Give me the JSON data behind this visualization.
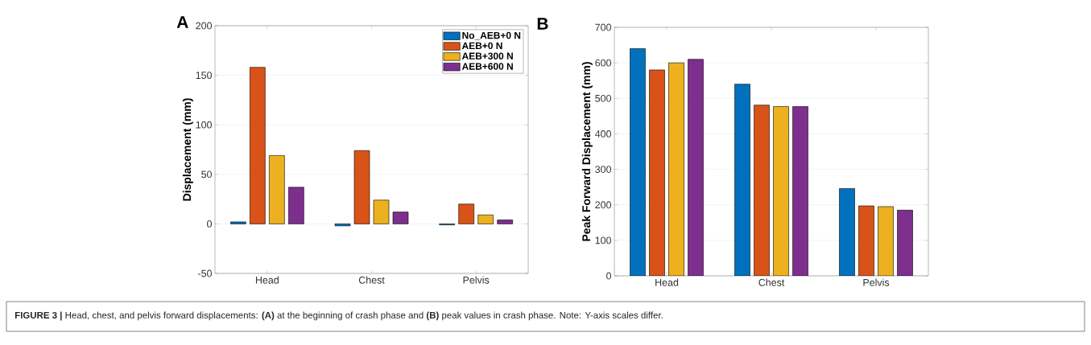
{
  "chart_data": [
    {
      "type": "bar",
      "title": "A",
      "ylabel": "Displacement (mm)",
      "categories": [
        "Head",
        "Chest",
        "Pelvis"
      ],
      "series": [
        {
          "name": "No_AEB+0 N",
          "color": "#0072bd",
          "values": [
            2,
            -2,
            -1
          ]
        },
        {
          "name": "AEB+0 N",
          "color": "#d95319",
          "values": [
            158,
            74,
            20
          ]
        },
        {
          "name": "AEB+300 N",
          "color": "#edb120",
          "values": [
            69,
            24,
            9
          ]
        },
        {
          "name": "AEB+600 N",
          "color": "#7e2f8e",
          "values": [
            37,
            12,
            4
          ]
        }
      ],
      "ylim": [
        -50,
        200
      ],
      "yticks": [
        -50,
        0,
        50,
        100,
        150,
        200
      ],
      "grid": "y",
      "legend": "top right",
      "annotations": [
        "**FIGURE 3 |** Head, chest, and pelvis forward displacements: **(A)** at the beginning of crash phase and **(B)** peak values in crash phase. Note: Y-axis scales differ."
      ]
    },
    {
      "type": "bar",
      "title": "B",
      "ylabel": "Peak Forward Displacement (mm)",
      "categories": [
        "Head",
        "Chest",
        "Pelvis"
      ],
      "series": [
        {
          "color": "#0072bd",
          "values": [
            640,
            540,
            246
          ]
        },
        {
          "color": "#d95319",
          "values": [
            580,
            481,
            197
          ]
        },
        {
          "color": "#edb120",
          "values": [
            600,
            477,
            195
          ]
        },
        {
          "color": "#7e2f8e",
          "values": [
            610,
            477,
            185
          ]
        }
      ],
      "ylim": [
        0,
        700
      ],
      "yticks": [
        0,
        100,
        200,
        300,
        400,
        500,
        600,
        700
      ],
      "grid": "y"
    }
  ]
}
